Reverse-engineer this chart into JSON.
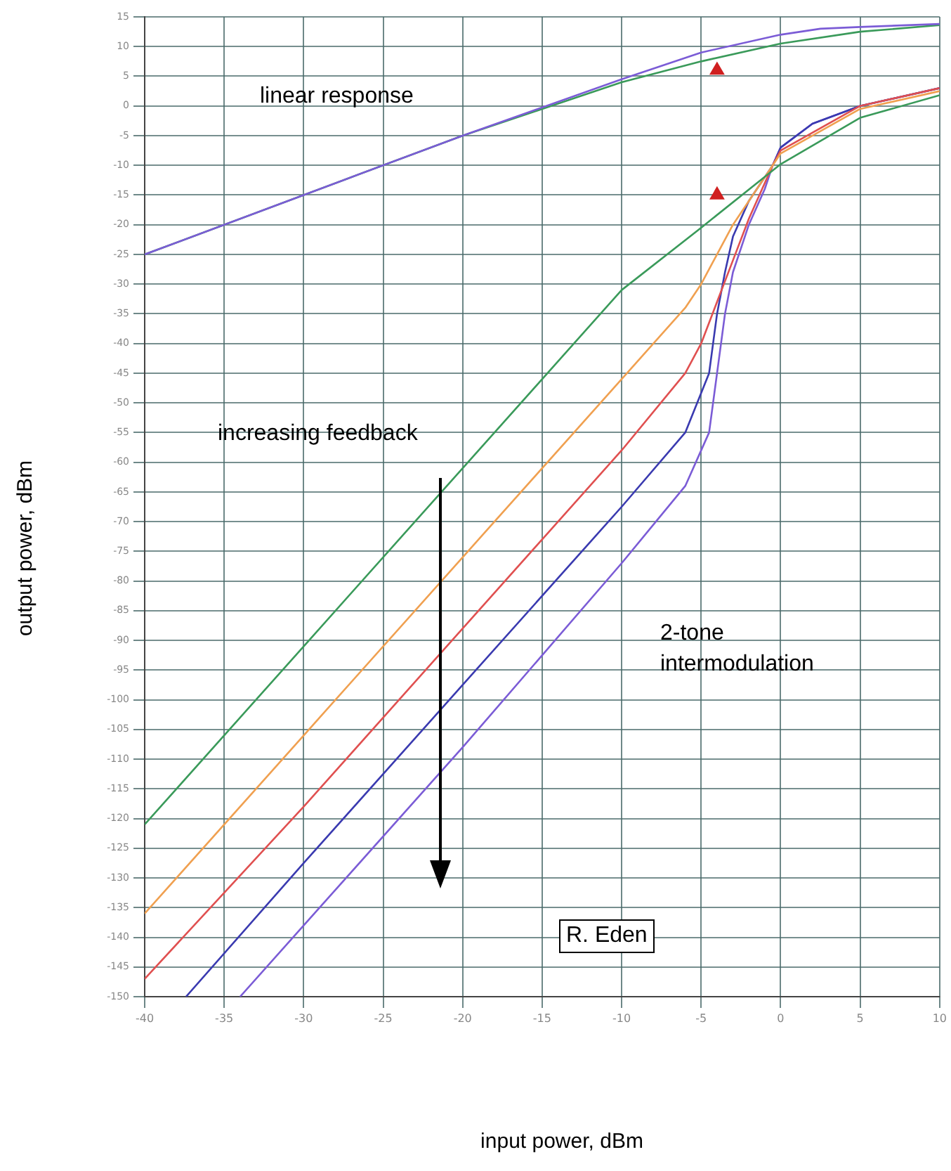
{
  "chart_data": {
    "type": "line",
    "xlabel": "input power, dBm",
    "ylabel": "output power, dBm",
    "xlim": [
      -40,
      10
    ],
    "xticks": [
      -40,
      -35,
      -30,
      -25,
      -20,
      -15,
      -10,
      -5,
      0,
      5,
      10
    ],
    "ylim": [
      -150,
      15
    ],
    "yticks": [
      -150,
      -145,
      -140,
      -135,
      -130,
      -125,
      -120,
      -115,
      -110,
      -105,
      -100,
      -95,
      -90,
      -85,
      -80,
      -75,
      -70,
      -65,
      -60,
      -55,
      -50,
      -45,
      -40,
      -35,
      -30,
      -25,
      -20,
      -15,
      -10,
      -5,
      0,
      5,
      10,
      15
    ],
    "grid": true,
    "legend": false,
    "marker": "none",
    "line_style": "solid",
    "series": [
      {
        "color": "#7b5cd6",
        "x": [
          -40,
          -30,
          -20,
          -10,
          -5,
          0,
          2.5,
          5,
          10
        ],
        "values": [
          -25,
          -15,
          -5,
          4.5,
          9,
          12,
          13,
          13.3,
          13.8
        ]
      },
      {
        "color": "#3a9a5a",
        "x": [
          -40,
          -20,
          -10,
          -5,
          0,
          5,
          10
        ],
        "values": [
          -25,
          -5,
          4,
          7.5,
          10.5,
          12.5,
          13.6
        ]
      },
      {
        "color": "#3a9a5a",
        "x": [
          -40,
          -30,
          -20,
          -10,
          -5,
          0,
          5,
          10
        ],
        "values": [
          -121,
          -91,
          -61,
          -31,
          -20.5,
          -9.8,
          -2,
          1.8
        ]
      },
      {
        "color": "#f0a050",
        "x": [
          -40,
          -30,
          -20,
          -10,
          -6,
          -5,
          -4,
          -3,
          -2,
          -1,
          -0.5,
          0,
          5,
          10
        ],
        "values": [
          -136,
          -106,
          -76,
          -46,
          -34,
          -30,
          -25,
          -20,
          -16,
          -12,
          -10,
          -8,
          -0.5,
          2.5
        ]
      },
      {
        "color": "#e05050",
        "x": [
          -40,
          -30,
          -20,
          -10,
          -6,
          -5,
          -4,
          -3,
          -2,
          -1,
          -0.5,
          0,
          5,
          10
        ],
        "values": [
          -147,
          -118,
          -88,
          -58,
          -45,
          -40,
          -33,
          -26,
          -19,
          -13,
          -10,
          -7.5,
          0,
          3
        ]
      },
      {
        "color": "#3a3ab0",
        "x": [
          -37.4,
          -30,
          -20,
          -10,
          -6,
          -4.5,
          -4,
          -3.5,
          -3,
          -2,
          -1,
          -0.5,
          0,
          2,
          5,
          10
        ],
        "values": [
          -150,
          -127.5,
          -97.5,
          -67.5,
          -55,
          -45,
          -35,
          -28,
          -22,
          -16,
          -12,
          -10,
          -7,
          -3,
          0,
          3
        ]
      },
      {
        "color": "#7b5cd6",
        "x": [
          -34,
          -30,
          -20,
          -10,
          -6,
          -4.5,
          -4,
          -3.5,
          -3,
          -2,
          -1,
          -0.5,
          0,
          2,
          5,
          10
        ],
        "values": [
          -150,
          -138,
          -108,
          -77,
          -64,
          -55,
          -45,
          -35,
          -28,
          -20,
          -14,
          -10,
          -7,
          -3,
          0,
          3
        ]
      },
      {
        "type": "scatter",
        "marker": "triangle",
        "color": "#d02020",
        "x": [
          -4
        ],
        "values": [
          6
        ]
      },
      {
        "type": "scatter",
        "marker": "triangle",
        "color": "#d02020",
        "x": [
          -4
        ],
        "values": [
          -15
        ]
      }
    ],
    "annotations": [
      "linear response",
      "increasing feedback",
      "2-tone intermodulation",
      "R. Eden"
    ]
  }
}
